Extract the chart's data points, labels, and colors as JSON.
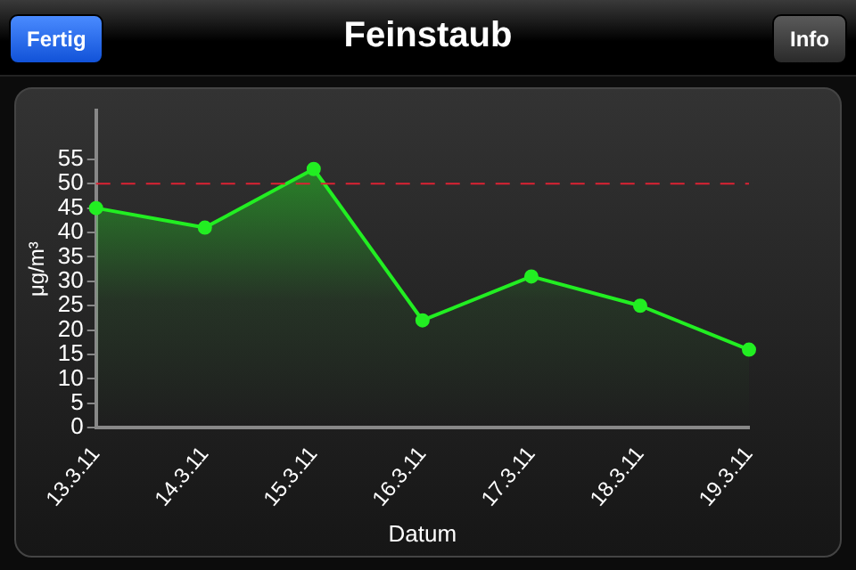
{
  "chart_data": {
    "type": "area",
    "title": "Feinstaub",
    "xlabel": "Datum",
    "ylabel": "μg/m³",
    "annotations": [
      "Fertig",
      "Info"
    ],
    "categories": [
      "13.3.11",
      "14.3.11",
      "15.3.11",
      "16.3.11",
      "17.3.11",
      "18.3.11",
      "19.3.11"
    ],
    "series": [
      {
        "color": "#22ee22",
        "values": [
          45,
          41,
          53,
          22,
          31,
          25,
          16
        ]
      }
    ],
    "ylim": [
      0,
      65
    ],
    "yticks": [
      0,
      5,
      10,
      15,
      20,
      25,
      30,
      35,
      40,
      45,
      50,
      55
    ],
    "ref_lines": [
      {
        "axis": "y",
        "value": 50,
        "color": "#dd2233",
        "line_style": "dashed"
      }
    ],
    "grid": false,
    "legend": false,
    "marker": "circle",
    "line_style": "solid"
  }
}
